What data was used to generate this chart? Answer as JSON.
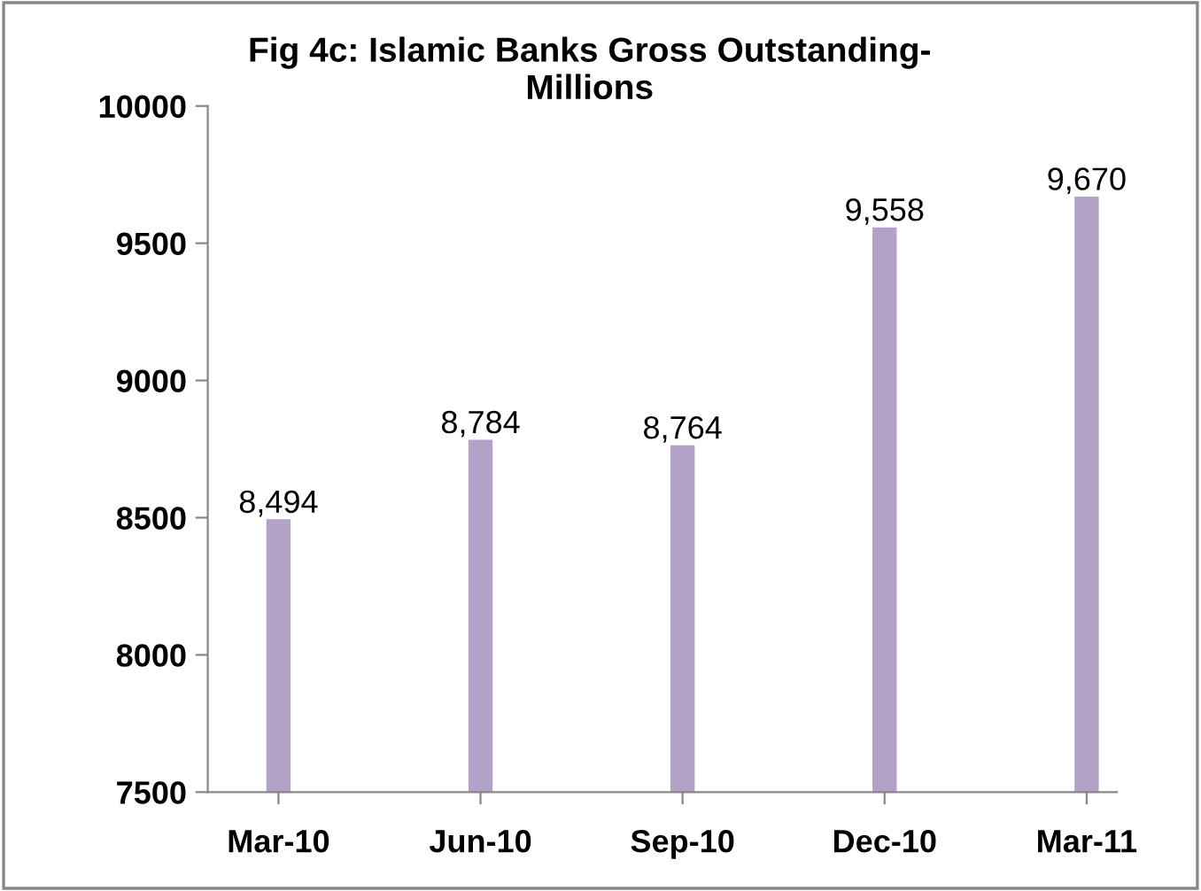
{
  "chart_data": {
    "type": "bar",
    "title": "Fig 4c: Islamic Banks Gross Outstanding-\nMillions",
    "categories": [
      "Mar-10",
      "Jun-10",
      "Sep-10",
      "Dec-10",
      "Mar-11"
    ],
    "values": [
      8494,
      8784,
      8764,
      9558,
      9670
    ],
    "value_labels": [
      "8,494",
      "8,784",
      "8,764",
      "9,558",
      "9,670"
    ],
    "color": "#b3a2c7",
    "ylim": [
      7500,
      10000
    ],
    "yticks": [
      7500,
      8000,
      8500,
      9000,
      9500,
      10000
    ],
    "grid": false,
    "legend": false
  }
}
